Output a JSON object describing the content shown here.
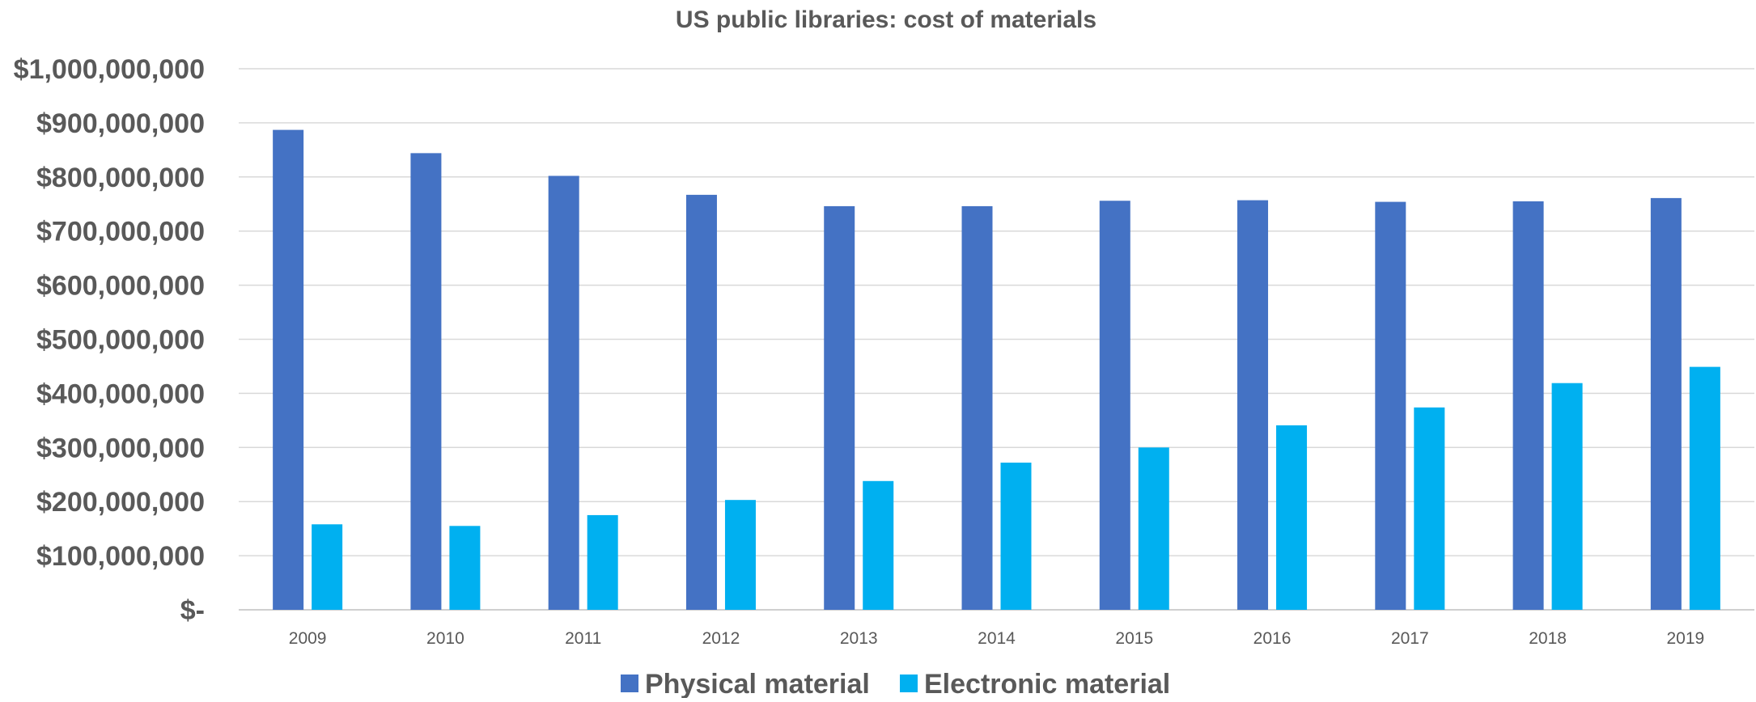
{
  "chart_data": {
    "type": "bar",
    "title": "US public libraries: cost of materials",
    "xlabel": "",
    "ylabel": "",
    "categories": [
      "2009",
      "2010",
      "2011",
      "2012",
      "2013",
      "2014",
      "2015",
      "2016",
      "2017",
      "2018",
      "2019"
    ],
    "series": [
      {
        "name": "Physical material",
        "color": "#4472C4",
        "values": [
          887000000,
          844000000,
          802000000,
          767000000,
          746000000,
          746000000,
          756000000,
          757000000,
          754000000,
          755000000,
          761000000
        ]
      },
      {
        "name": "Electronic material",
        "color": "#00B0F0",
        "values": [
          158000000,
          155000000,
          175000000,
          203000000,
          238000000,
          272000000,
          300000000,
          341000000,
          374000000,
          419000000,
          449000000
        ]
      }
    ],
    "ylim": [
      0,
      1000000000
    ],
    "y_ticks": [
      0,
      100000000,
      200000000,
      300000000,
      400000000,
      500000000,
      600000000,
      700000000,
      800000000,
      900000000,
      1000000000
    ],
    "y_tick_labels": [
      "$-",
      "$100,000,000",
      "$200,000,000",
      "$300,000,000",
      "$400,000,000",
      "$500,000,000",
      "$600,000,000",
      "$700,000,000",
      "$800,000,000",
      "$900,000,000",
      "$1,000,000,000"
    ],
    "grid": true,
    "legend_position": "bottom"
  }
}
